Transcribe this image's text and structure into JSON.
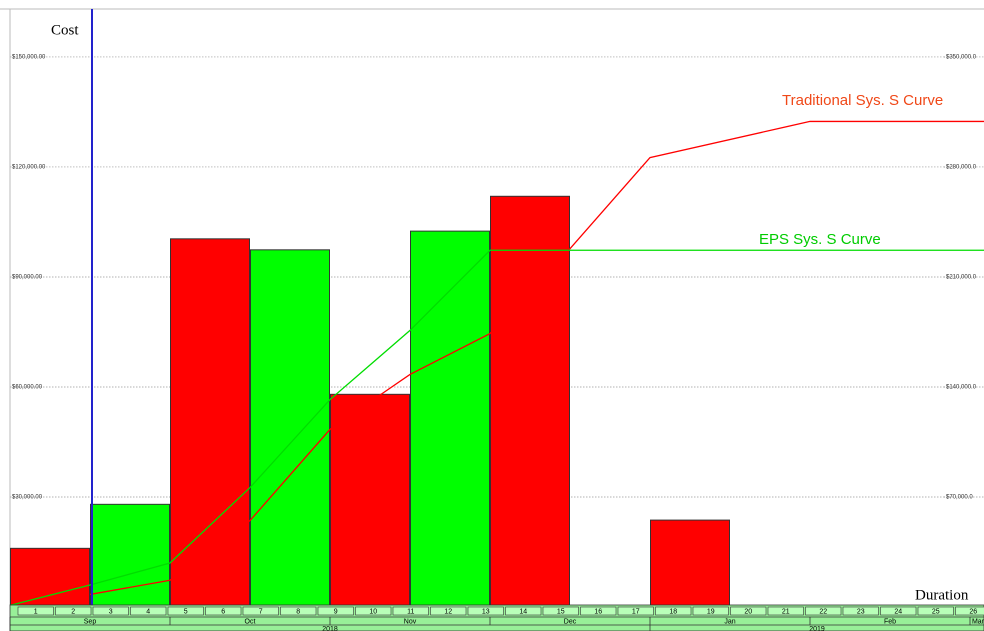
{
  "chart_data": {
    "type": "bar",
    "y_axis_label": "Cost",
    "x_axis_label": "Duration",
    "categories": [
      null,
      null,
      null,
      null,
      null,
      null,
      null,
      null,
      null
    ],
    "values": [
      16000,
      28000,
      100400,
      97400,
      58000,
      102500,
      112000,
      null,
      23700
    ],
    "colors": [
      "#ff0000",
      "#00ff00",
      "#ff0000",
      "#00ff00",
      "#ff0000",
      "#00ff00",
      "#ff0000",
      null,
      "#ff0000"
    ],
    "ylim": [
      0,
      162800
    ],
    "yticks": [
      {
        "value": 30000,
        "label": "$30,000.00"
      },
      {
        "value": 60000,
        "label": "$60,000.00"
      },
      {
        "value": 90000,
        "label": "$90,000.00"
      },
      {
        "value": 120000,
        "label": "$120,000.00"
      },
      {
        "value": 150000,
        "label": "$150,000.00"
      }
    ],
    "y2lim": [
      0,
      379900
    ],
    "y2ticks": [
      {
        "value": 70000,
        "label": "$70,000.0"
      },
      {
        "value": 140000,
        "label": "$140,000.0"
      },
      {
        "value": 210000,
        "label": "$210,000.0"
      },
      {
        "value": 280000,
        "label": "$280,000.0"
      },
      {
        "value": 350000,
        "label": "$350,000.0"
      }
    ],
    "grid": true,
    "series": [
      {
        "name": "Traditional Sys. S Curve",
        "color": "#ff0000",
        "label_color": "#f04818",
        "axis": "y2",
        "x": [
          1,
          2,
          3,
          4,
          5,
          6,
          7,
          8,
          10,
          12.2
        ],
        "values": [
          8000,
          17000,
          55000,
          113000,
          148000,
          174000,
          228000,
          286000,
          309000,
          309000
        ]
      },
      {
        "name": "EPS Sys. S Curve",
        "color": "#00dd00",
        "label_color": "#00cc00",
        "axis": "y2",
        "x": [
          0,
          1,
          2,
          3,
          4,
          5,
          6,
          12.2
        ],
        "values": [
          1000,
          14000,
          28000,
          76000,
          132000,
          176000,
          227000,
          227000
        ]
      }
    ],
    "weeks": [
      1,
      2,
      3,
      4,
      5,
      6,
      7,
      8,
      9,
      10,
      11,
      12,
      13,
      14,
      15,
      16,
      17,
      18,
      19,
      20,
      21,
      22,
      23,
      24,
      25,
      26
    ],
    "months": [
      "Sep",
      "Oct",
      "Nov",
      "Dec",
      "Jan",
      "Feb",
      "Mar"
    ],
    "years": [
      "2018",
      "2019"
    ]
  }
}
